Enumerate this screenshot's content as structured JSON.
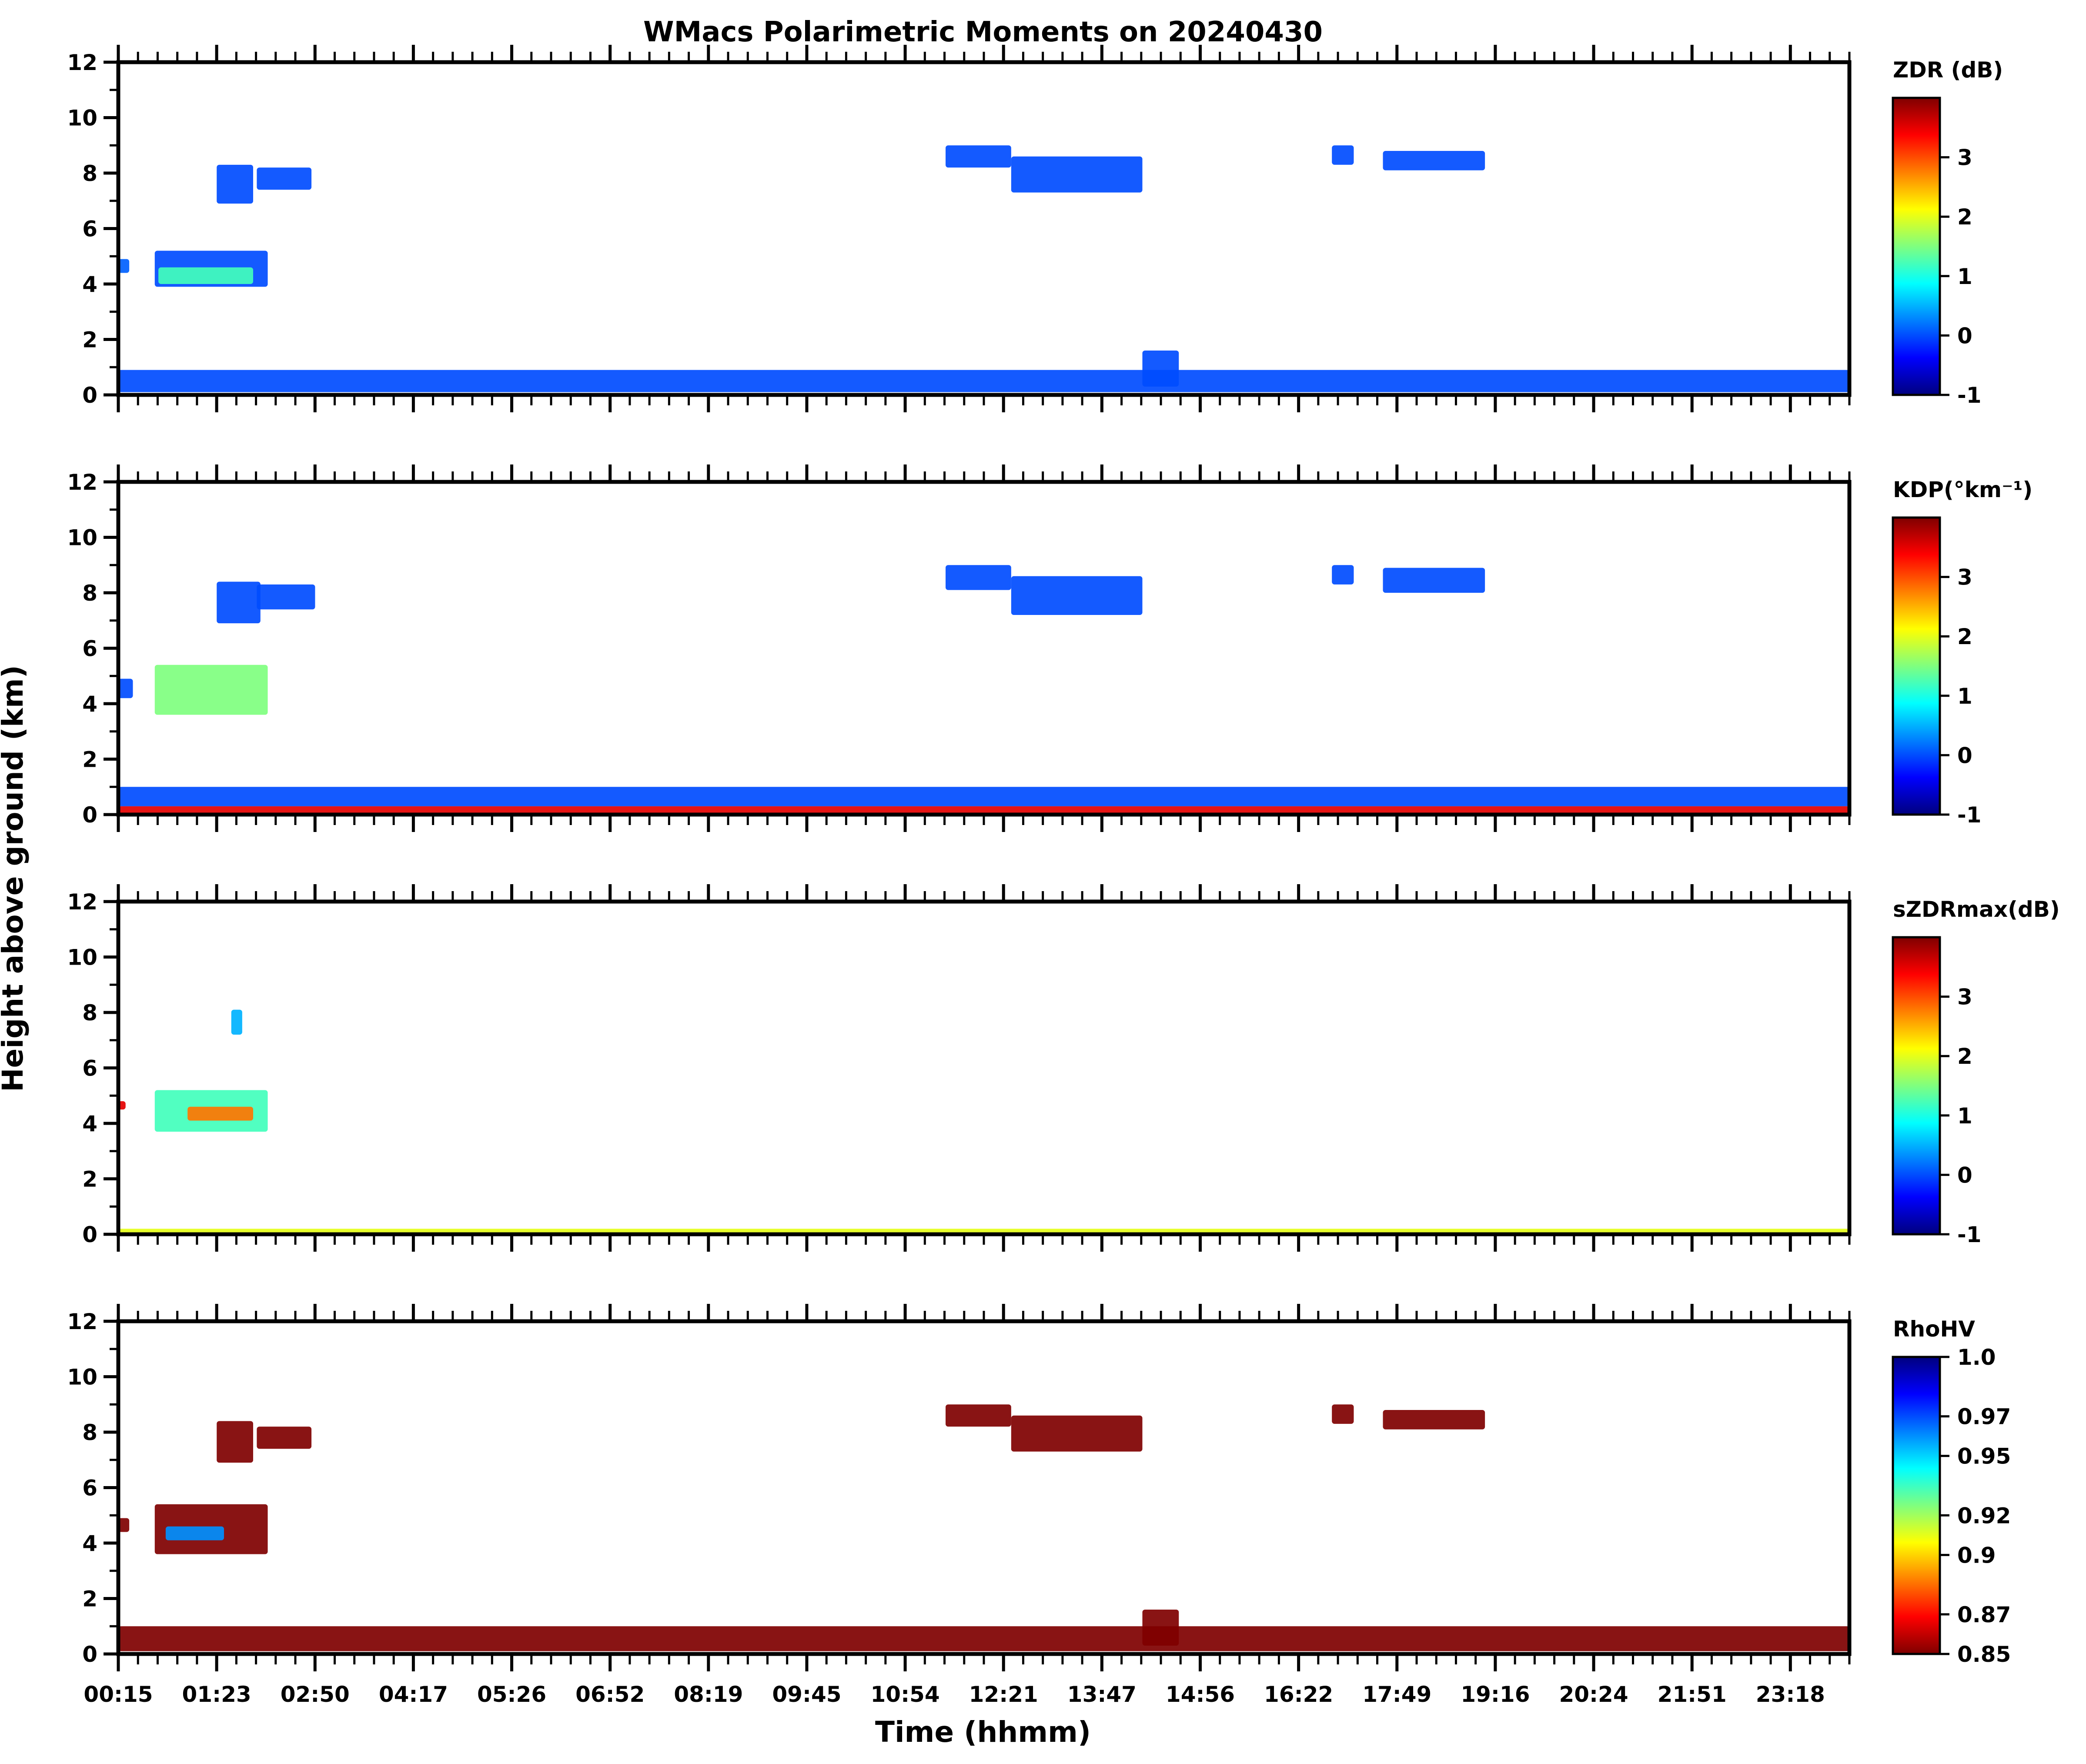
{
  "title": "WMacs Polarimetric Moments on 20240430",
  "xlabel": "Time (hhmm)",
  "ylabel": "Height above ground (km)",
  "colors": {
    "jet": [
      "#00007f",
      "#0000ff",
      "#007fff",
      "#00ffff",
      "#7fff7f",
      "#ffff00",
      "#ff7f00",
      "#ff0000",
      "#7f0000"
    ],
    "echo_blue": "#1a66ff",
    "echo_lightblue": "#3399ff",
    "rho_dark": "#800000",
    "axis": "#000000"
  },
  "chart_data": [
    {
      "type": "heatmap",
      "variable": "ZDR",
      "colorbar_label": "ZDR (dB)",
      "colorbar_ticks": [
        "-1",
        "0",
        "1",
        "2",
        "3"
      ],
      "clim": [
        -1,
        4
      ],
      "x_tick_labels": [
        "00:15",
        "01:23",
        "02:50",
        "04:17",
        "05:26",
        "06:52",
        "08:19",
        "09:45",
        "10:54",
        "12:21",
        "13:47",
        "14:56",
        "16:22",
        "17:49",
        "19:16",
        "20:24",
        "21:51",
        "23:18"
      ],
      "y_tick_labels": [
        "0",
        "2",
        "4",
        "6",
        "8",
        "10",
        "12"
      ],
      "xlim_hours": [
        0.25,
        24.0
      ],
      "ylim": [
        0,
        12
      ],
      "echoes": [
        {
          "t0": 0.25,
          "t1": 0.4,
          "h0": 4.4,
          "h1": 4.9,
          "value": 0.1
        },
        {
          "t0": 0.75,
          "t1": 2.3,
          "h0": 3.9,
          "h1": 5.2,
          "value": 0.0
        },
        {
          "t0": 0.8,
          "t1": 2.1,
          "h0": 4.0,
          "h1": 4.6,
          "value": 1.2
        },
        {
          "t0": 1.6,
          "t1": 2.1,
          "h0": 6.9,
          "h1": 8.3,
          "value": 0.0
        },
        {
          "t0": 2.15,
          "t1": 2.9,
          "h0": 7.4,
          "h1": 8.2,
          "value": 0.0
        },
        {
          "t0": 11.6,
          "t1": 12.5,
          "h0": 8.2,
          "h1": 9.0,
          "value": 0.0
        },
        {
          "t0": 12.5,
          "t1": 14.3,
          "h0": 7.3,
          "h1": 8.6,
          "value": 0.0
        },
        {
          "t0": 16.9,
          "t1": 17.2,
          "h0": 8.3,
          "h1": 9.0,
          "value": 0.0
        },
        {
          "t0": 17.6,
          "t1": 19.0,
          "h0": 8.1,
          "h1": 8.8,
          "value": 0.0
        },
        {
          "t0": 14.3,
          "t1": 14.8,
          "h0": 0.3,
          "h1": 1.6,
          "value": 0.0
        },
        {
          "t0": 0.25,
          "t1": 24.0,
          "h0": 0.1,
          "h1": 0.9,
          "value": 0.0
        }
      ]
    },
    {
      "type": "heatmap",
      "variable": "KDP",
      "colorbar_label": "KDP(°km⁻¹)",
      "colorbar_ticks": [
        "-1",
        "0",
        "1",
        "2",
        "3"
      ],
      "clim": [
        -1,
        4
      ],
      "x_tick_labels": [
        "00:15",
        "01:23",
        "02:50",
        "04:17",
        "05:26",
        "06:52",
        "08:19",
        "09:45",
        "10:54",
        "12:21",
        "13:47",
        "14:56",
        "16:22",
        "17:49",
        "19:16",
        "20:24",
        "21:51",
        "23:18"
      ],
      "y_tick_labels": [
        "0",
        "2",
        "4",
        "6",
        "8",
        "10",
        "12"
      ],
      "xlim_hours": [
        0.25,
        24.0
      ],
      "ylim": [
        0,
        12
      ],
      "echoes": [
        {
          "t0": 0.25,
          "t1": 0.45,
          "h0": 4.2,
          "h1": 4.9,
          "value": 0.0
        },
        {
          "t0": 0.75,
          "t1": 2.3,
          "h0": 3.6,
          "h1": 5.4,
          "value": 1.5
        },
        {
          "t0": 1.6,
          "t1": 2.2,
          "h0": 6.9,
          "h1": 8.4,
          "value": 0.0
        },
        {
          "t0": 2.15,
          "t1": 2.95,
          "h0": 7.4,
          "h1": 8.3,
          "value": 0.0
        },
        {
          "t0": 11.6,
          "t1": 12.5,
          "h0": 8.1,
          "h1": 9.0,
          "value": 0.0
        },
        {
          "t0": 12.5,
          "t1": 14.3,
          "h0": 7.2,
          "h1": 8.6,
          "value": 0.0
        },
        {
          "t0": 16.9,
          "t1": 17.2,
          "h0": 8.3,
          "h1": 9.0,
          "value": 0.0
        },
        {
          "t0": 17.6,
          "t1": 19.0,
          "h0": 8.0,
          "h1": 8.9,
          "value": 0.0
        },
        {
          "t0": 0.25,
          "t1": 24.0,
          "h0": 0.3,
          "h1": 1.0,
          "value": 0.0
        },
        {
          "t0": 0.25,
          "t1": 24.0,
          "h0": 0.0,
          "h1": 0.3,
          "value": 3.5
        }
      ]
    },
    {
      "type": "heatmap",
      "variable": "sZDRmax",
      "colorbar_label": "sZDRmax(dB)",
      "colorbar_ticks": [
        "-1",
        "0",
        "1",
        "2",
        "3"
      ],
      "clim": [
        -1,
        4
      ],
      "x_tick_labels": [
        "00:15",
        "01:23",
        "02:50",
        "04:17",
        "05:26",
        "06:52",
        "08:19",
        "09:45",
        "10:54",
        "12:21",
        "13:47",
        "14:56",
        "16:22",
        "17:49",
        "19:16",
        "20:24",
        "21:51",
        "23:18"
      ],
      "y_tick_labels": [
        "0",
        "2",
        "4",
        "6",
        "8",
        "10",
        "12"
      ],
      "xlim_hours": [
        0.25,
        24.0
      ],
      "ylim": [
        0,
        12
      ],
      "echoes": [
        {
          "t0": 0.25,
          "t1": 0.35,
          "h0": 4.5,
          "h1": 4.8,
          "value": 3.5
        },
        {
          "t0": 0.75,
          "t1": 2.3,
          "h0": 3.7,
          "h1": 5.2,
          "value": 1.2
        },
        {
          "t0": 1.2,
          "t1": 2.1,
          "h0": 4.1,
          "h1": 4.6,
          "value": 2.8
        },
        {
          "t0": 1.8,
          "t1": 1.95,
          "h0": 7.2,
          "h1": 8.1,
          "value": 0.5
        },
        {
          "t0": 0.25,
          "t1": 24.0,
          "h0": 0.0,
          "h1": 0.2,
          "value": 2.0
        }
      ]
    },
    {
      "type": "heatmap",
      "variable": "RhoHV",
      "colorbar_label": "RhoHV",
      "colorbar_ticks": [
        "0.85",
        "0.87",
        "0.9",
        "0.92",
        "0.95",
        "0.97",
        "1.0"
      ],
      "clim": [
        0.85,
        1.0
      ],
      "x_tick_labels": [
        "00:15",
        "01:23",
        "02:50",
        "04:17",
        "05:26",
        "06:52",
        "08:19",
        "09:45",
        "10:54",
        "12:21",
        "13:47",
        "14:56",
        "16:22",
        "17:49",
        "19:16",
        "20:24",
        "21:51",
        "23:18"
      ],
      "y_tick_labels": [
        "0",
        "2",
        "4",
        "6",
        "8",
        "10",
        "12"
      ],
      "xlim_hours": [
        0.25,
        24.0
      ],
      "ylim": [
        0,
        12
      ],
      "echoes": [
        {
          "t0": 0.25,
          "t1": 0.4,
          "h0": 4.4,
          "h1": 4.9,
          "value": 0.85
        },
        {
          "t0": 0.75,
          "t1": 2.3,
          "h0": 3.6,
          "h1": 5.4,
          "value": 0.85
        },
        {
          "t0": 0.9,
          "t1": 1.7,
          "h0": 4.1,
          "h1": 4.6,
          "value": 0.96
        },
        {
          "t0": 1.6,
          "t1": 2.1,
          "h0": 6.9,
          "h1": 8.4,
          "value": 0.85
        },
        {
          "t0": 2.15,
          "t1": 2.9,
          "h0": 7.4,
          "h1": 8.2,
          "value": 0.85
        },
        {
          "t0": 11.6,
          "t1": 12.5,
          "h0": 8.2,
          "h1": 9.0,
          "value": 0.85
        },
        {
          "t0": 12.5,
          "t1": 14.3,
          "h0": 7.3,
          "h1": 8.6,
          "value": 0.85
        },
        {
          "t0": 16.9,
          "t1": 17.2,
          "h0": 8.3,
          "h1": 9.0,
          "value": 0.85
        },
        {
          "t0": 17.6,
          "t1": 19.0,
          "h0": 8.1,
          "h1": 8.8,
          "value": 0.85
        },
        {
          "t0": 14.3,
          "t1": 14.8,
          "h0": 0.3,
          "h1": 1.6,
          "value": 0.85
        },
        {
          "t0": 0.25,
          "t1": 24.0,
          "h0": 0.1,
          "h1": 1.0,
          "value": 0.85
        }
      ]
    }
  ]
}
